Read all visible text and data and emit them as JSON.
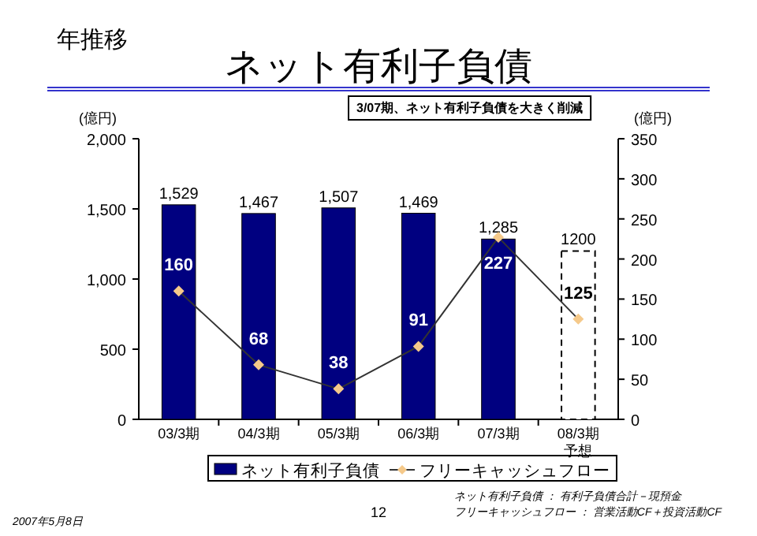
{
  "chart_data": {
    "type": "bar",
    "title": "ネット有利子負債",
    "subtitle": "年推移",
    "ylabel": "(億円)",
    "y2label": "(億円)",
    "categories": [
      "03/3期",
      "04/3期",
      "05/3期",
      "06/3期",
      "07/3期",
      "08/3期予想"
    ],
    "series": [
      {
        "name": "ネット有利子負債",
        "colors": [
          "#000080",
          "#000080",
          "#000080",
          "#000080",
          "#000080",
          "#ffffff"
        ],
        "values": [
          1529,
          1467,
          1507,
          1469,
          1285,
          1200
        ],
        "value_labels": [
          "1,529",
          "1,467",
          "1,507",
          "1,469",
          "1,285",
          "1200"
        ]
      },
      {
        "name": "フリーキャッシュフロー",
        "type": "line",
        "axis": "y2",
        "color": "#f5c98a",
        "values": [
          160,
          68,
          38,
          91,
          227,
          125
        ],
        "value_labels": [
          "160",
          "68",
          "38",
          "91",
          "227",
          "125"
        ]
      }
    ],
    "ylim": [
      0,
      2000
    ],
    "yticks": [
      {
        "value": 0,
        "label": "0"
      },
      {
        "value": 500,
        "label": "500"
      },
      {
        "value": 1000,
        "label": "1,000"
      },
      {
        "value": 1500,
        "label": "1,500"
      },
      {
        "value": 2000,
        "label": "2,000"
      }
    ],
    "y2lim": [
      0,
      350
    ],
    "y2ticks": [
      0,
      50,
      100,
      150,
      200,
      250,
      300,
      350
    ],
    "marker": "diamond",
    "legend": "bottom",
    "grid": false,
    "annotations": [
      "3/07期、ネット有利子負債を大きく削減",
      "ネット有利子負債 ： 有利子負債合計－現預金",
      "フリーキャッシュフロー ： 営業活動CF＋投資活動CF",
      "12",
      "2007年5月8日"
    ]
  }
}
